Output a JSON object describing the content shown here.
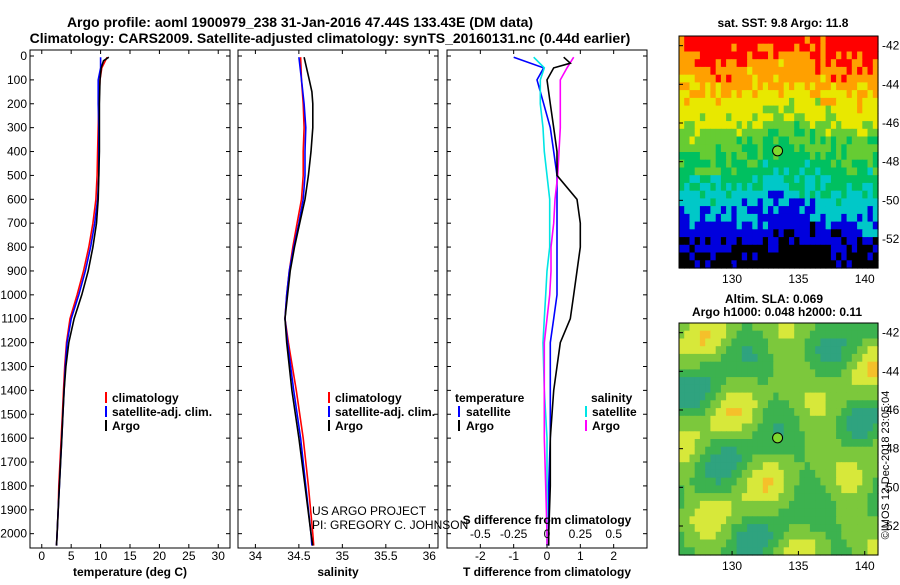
{
  "header": {
    "title1": "Argo profile: aoml 1900979_238 31-Jan-2016 47.44S 133.43E (DM data)",
    "title2": "Climatology: CARS2009. Satellite-adjusted climatology: synTS_20160131.nc (0.44d earlier)"
  },
  "credits": {
    "project": "US ARGO PROJECT",
    "pi": "PI: GREGORY C. JOHNSON",
    "stamp": "©IMOS 12-Dec-2018 23:05:04"
  },
  "colors": {
    "climatology": "#ff0000",
    "satellite": "#0000ff",
    "argo": "#000000",
    "sal_satellite": "#00e5e5",
    "sal_argo": "#ff00ff"
  },
  "chart_data": [
    {
      "type": "line",
      "xlabel": "temperature (deg C)",
      "ylabel": "",
      "xlim": [
        -2,
        32
      ],
      "ylim": [
        2060,
        0
      ],
      "xticks": [
        "0",
        "5",
        "10",
        "15",
        "20",
        "25",
        "30"
      ],
      "yticks": [
        "0",
        "100",
        "200",
        "300",
        "400",
        "500",
        "600",
        "700",
        "800",
        "900",
        "1000",
        "1100",
        "1200",
        "1300",
        "1400",
        "1500",
        "1600",
        "1700",
        "1800",
        "1900",
        "2000"
      ],
      "legend": [
        "climatology",
        "satellite-adj. clim.",
        "Argo"
      ],
      "series": [
        {
          "name": "climatology",
          "depth": [
            5,
            50,
            100,
            200,
            300,
            400,
            500,
            600,
            700,
            800,
            900,
            1000,
            1100,
            1200,
            1300,
            1400,
            1500,
            1600,
            1700,
            1800,
            1900,
            2000,
            2050
          ],
          "values": [
            11.1,
            10.2,
            9.9,
            9.7,
            9.6,
            9.5,
            9.4,
            9.2,
            8.7,
            8.0,
            7.1,
            6.0,
            4.8,
            4.2,
            3.9,
            3.7,
            3.5,
            3.3,
            3.1,
            2.9,
            2.8,
            2.6,
            2.5
          ]
        },
        {
          "name": "satellite-adj. clim.",
          "depth": [
            5,
            50,
            100,
            200,
            300,
            400,
            500,
            600,
            700,
            800,
            900,
            1000,
            1100,
            1200,
            1300,
            1400,
            1500,
            1600,
            1700,
            1800,
            1900,
            2000,
            2050
          ],
          "values": [
            10.0,
            10.0,
            9.6,
            9.6,
            9.7,
            9.7,
            9.7,
            9.5,
            9.0,
            8.3,
            7.4,
            6.3,
            5.0,
            4.3,
            4.0,
            3.8,
            3.6,
            3.4,
            3.2,
            3.0,
            2.8,
            2.6,
            2.5
          ]
        },
        {
          "name": "Argo",
          "depth": [
            5,
            20,
            50,
            100,
            200,
            300,
            400,
            500,
            600,
            700,
            800,
            900,
            1000,
            1100,
            1200,
            1300,
            1400,
            1500,
            1600,
            1700,
            1800,
            1900,
            2000,
            2050
          ],
          "values": [
            11.4,
            10.5,
            10.1,
            9.9,
            9.8,
            9.8,
            9.8,
            9.7,
            9.6,
            9.3,
            8.7,
            7.9,
            6.8,
            5.5,
            4.6,
            4.1,
            3.8,
            3.6,
            3.4,
            3.2,
            3.0,
            2.8,
            2.6,
            2.5
          ]
        }
      ]
    },
    {
      "type": "line",
      "xlabel": "salinity",
      "ylabel": "",
      "xlim": [
        33.8,
        36.1
      ],
      "ylim": [
        2060,
        0
      ],
      "xticks": [
        "34",
        "34.5",
        "35",
        "35.5",
        "36"
      ],
      "legend": [
        "climatology",
        "satellite-adj. clim.",
        "Argo"
      ],
      "series": [
        {
          "name": "climatology",
          "depth": [
            5,
            100,
            200,
            300,
            400,
            500,
            600,
            700,
            800,
            900,
            1000,
            1100,
            1200,
            1400,
            1600,
            1800,
            2000,
            2050
          ],
          "values": [
            34.52,
            34.53,
            34.55,
            34.56,
            34.55,
            34.55,
            34.53,
            34.48,
            34.43,
            34.39,
            34.36,
            34.34,
            34.38,
            34.47,
            34.55,
            34.61,
            34.66,
            34.67
          ]
        },
        {
          "name": "satellite-adj. clim.",
          "depth": [
            5,
            100,
            200,
            300,
            400,
            500,
            600,
            700,
            800,
            900,
            1000,
            1100,
            1200,
            1400,
            1600,
            1800,
            2000,
            2050
          ],
          "values": [
            34.5,
            34.53,
            34.56,
            34.58,
            34.57,
            34.57,
            34.55,
            34.5,
            34.44,
            34.39,
            34.36,
            34.34,
            34.37,
            34.44,
            34.52,
            34.58,
            34.64,
            34.65
          ]
        },
        {
          "name": "Argo",
          "depth": [
            5,
            100,
            150,
            200,
            300,
            400,
            500,
            600,
            700,
            800,
            900,
            1000,
            1100,
            1200,
            1400,
            1600,
            1800,
            2000,
            2050
          ],
          "values": [
            34.56,
            34.62,
            34.65,
            34.66,
            34.66,
            34.64,
            34.61,
            34.57,
            34.51,
            34.45,
            34.4,
            34.37,
            34.34,
            34.36,
            34.42,
            34.5,
            34.57,
            34.64,
            34.66
          ]
        }
      ]
    },
    {
      "type": "line",
      "xlabel": "T difference from climatology",
      "xlabel2": "S difference from climatology",
      "xlim": [
        -3,
        3
      ],
      "ylim": [
        2060,
        0
      ],
      "xticks": [
        "-2",
        "-1",
        "0",
        "1",
        "2"
      ],
      "xticks2": [
        "-0.5",
        "-0.25",
        "0",
        "0.25",
        "0.5"
      ],
      "legend_left_title": "temperature",
      "legend_right_title": "salinity",
      "legend": [
        "satellite",
        "Argo"
      ],
      "series": [
        {
          "name": "temperature satellite",
          "depth": [
            5,
            50,
            100,
            200,
            300,
            400,
            500,
            600,
            700,
            800,
            900,
            1000,
            1100,
            1200,
            1400,
            1600,
            1800,
            2000,
            2050
          ],
          "values": [
            -1.0,
            -0.1,
            -0.3,
            -0.1,
            0.1,
            0.2,
            0.3,
            0.3,
            0.3,
            0.3,
            0.3,
            0.3,
            0.2,
            0.1,
            0.1,
            0.1,
            0.05,
            0.05,
            0.05
          ]
        },
        {
          "name": "temperature Argo",
          "depth": [
            5,
            30,
            50,
            100,
            200,
            300,
            400,
            500,
            600,
            700,
            800,
            900,
            1000,
            1100,
            1200,
            1400,
            1600,
            1800,
            2000,
            2050
          ],
          "values": [
            0.5,
            0.7,
            0.2,
            0,
            0.1,
            0.2,
            0.3,
            0.3,
            0.9,
            1.0,
            1.0,
            0.9,
            0.8,
            0.7,
            0.4,
            0.2,
            0.1,
            0.1,
            0.05,
            0.05
          ]
        },
        {
          "name": "salinity satellite",
          "depth": [
            5,
            50,
            100,
            200,
            300,
            400,
            500,
            600,
            700,
            800,
            900,
            1000,
            1100,
            1200,
            1400,
            1600,
            1800,
            2000,
            2050
          ],
          "values": [
            -0.1,
            -0.02,
            -0.05,
            -0.05,
            -0.03,
            -0.02,
            0,
            0.02,
            0.02,
            0.02,
            0,
            -0.01,
            -0.02,
            -0.03,
            -0.02,
            0,
            0,
            0,
            0
          ]
        },
        {
          "name": "salinity Argo",
          "depth": [
            5,
            50,
            100,
            200,
            300,
            400,
            500,
            600,
            700,
            800,
            900,
            1000,
            1100,
            1200,
            1400,
            1600,
            1800,
            2000,
            2050
          ],
          "values": [
            0.2,
            0.15,
            0.1,
            0.1,
            0.1,
            0.09,
            0.08,
            0.06,
            0.05,
            0.03,
            0.03,
            0.02,
            0,
            -0.02,
            -0.02,
            -0.02,
            -0.01,
            0,
            0
          ]
        }
      ]
    },
    {
      "type": "heatmap",
      "title": "sat. SST: 9.8 Argo: 11.8",
      "xticks": [
        "130",
        "135",
        "140"
      ],
      "yticks": [
        "-42",
        "-44",
        "-46",
        "-48",
        "-50",
        "-52"
      ],
      "xlim": [
        126,
        141
      ],
      "ylim": [
        -53.5,
        -41.5
      ],
      "marker": {
        "lon": 133.43,
        "lat": -47.44
      }
    },
    {
      "type": "heatmap",
      "title": "Altim. SLA: 0.069",
      "subtitle": "Argo h1000: 0.048 h2000: 0.11",
      "xticks": [
        "130",
        "135",
        "140"
      ],
      "yticks": [
        "-42",
        "-44",
        "-46",
        "-48",
        "-50",
        "-52"
      ],
      "xlim": [
        126,
        141
      ],
      "ylim": [
        -53.5,
        -41.5
      ],
      "marker": {
        "lon": 133.43,
        "lat": -47.44
      }
    }
  ]
}
